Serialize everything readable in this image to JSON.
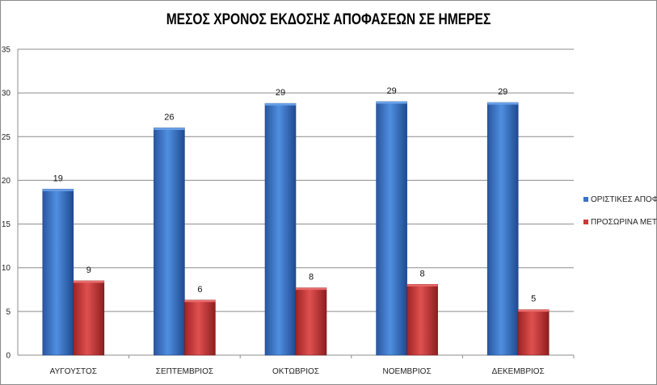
{
  "chart_data": {
    "type": "bar",
    "title": "ΜΕΣΟΣ ΧΡΟΝΟΣ ΕΚΔΟΣΗΣ ΑΠΟΦΑΣΕΩΝ ΣΕ ΗΜΕΡΕΣ",
    "xlabel": "",
    "ylabel": "",
    "ylim": [
      0,
      35
    ],
    "yticks": [
      "0",
      "5",
      "10",
      "15",
      "20",
      "25",
      "30",
      "35"
    ],
    "grid": true,
    "legend_position": "right",
    "categories": [
      "ΑΥΓΟΥΣΤΟΣ",
      "ΣΕΠΤΕΜΒΡΙΟΣ",
      "ΟΚΤΩΒΡΙΟΣ",
      "ΝΟΕΜΒΡΙΟΣ",
      "ΔΕΚΕΜΒΡΙΟΣ"
    ],
    "series": [
      {
        "name": "ΟΡΙΣΤΙΚΕΣ ΑΠΟΦΑΣΕΙΣ",
        "color": "#3a72c4",
        "values": [
          19,
          26,
          28.8,
          29,
          28.9
        ],
        "labels": [
          "19",
          "26",
          "29",
          "29",
          "29"
        ]
      },
      {
        "name": "ΠΡΟΣΩΡΙΝΑ ΜΕΤΡΑ",
        "color": "#c63a3a",
        "values": [
          8.5,
          6.3,
          7.7,
          8.1,
          5.2
        ],
        "labels": [
          "9",
          "6",
          "8",
          "8",
          "5"
        ]
      }
    ]
  }
}
